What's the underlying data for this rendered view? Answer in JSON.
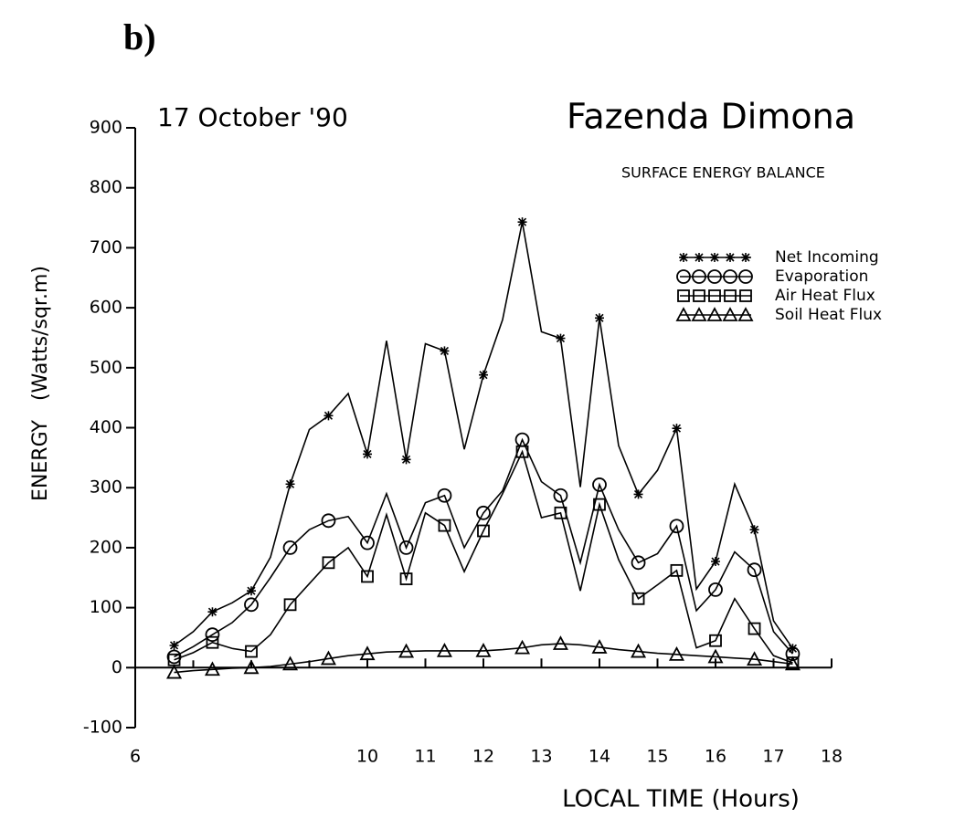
{
  "chart_data": {
    "type": "line",
    "panel_label": "b)",
    "subtitle": "17 October '90",
    "title": "Fazenda Dimona",
    "caption": "SURFACE ENERGY BALANCE",
    "ylabel": "ENERGY   (Watts/sqr.m)",
    "xlabel": "LOCAL TIME (Hours)",
    "x": [
      6.67,
      7,
      7.33,
      7.67,
      8,
      8.33,
      8.67,
      9,
      9.33,
      9.67,
      10,
      10.33,
      10.67,
      11,
      11.33,
      11.67,
      12,
      12.33,
      12.67,
      13,
      13.33,
      13.67,
      14,
      14.33,
      14.67,
      15,
      15.33,
      15.67,
      16,
      16.33,
      16.67,
      17,
      17.33
    ],
    "series": [
      {
        "name": "Net   Incoming",
        "marker": "star",
        "color": "#000000",
        "values": [
          37,
          60,
          93,
          108,
          128,
          184,
          306,
          397,
          420,
          457,
          356,
          545,
          347,
          540,
          528,
          364,
          488,
          580,
          743,
          560,
          549,
          301,
          583,
          370,
          289,
          329,
          399,
          131,
          177,
          306,
          230,
          78,
          32
        ]
      },
      {
        "name": "Evaporation",
        "marker": "circle",
        "color": "#000000",
        "values": [
          18,
          35,
          55,
          75,
          105,
          150,
          200,
          230,
          245,
          252,
          208,
          290,
          200,
          275,
          287,
          200,
          258,
          295,
          380,
          310,
          287,
          175,
          305,
          230,
          175,
          190,
          236,
          95,
          130,
          193,
          163,
          60,
          23
        ]
      },
      {
        "name": "Air   Heat Flux",
        "marker": "square",
        "color": "#000000",
        "values": [
          13,
          25,
          42,
          32,
          27,
          55,
          105,
          140,
          175,
          200,
          152,
          255,
          148,
          258,
          237,
          160,
          228,
          290,
          360,
          250,
          258,
          128,
          272,
          180,
          115,
          138,
          162,
          33,
          45,
          115,
          65,
          20,
          8
        ]
      },
      {
        "name": "Soil  Heat Flux",
        "marker": "triangle",
        "color": "#000000",
        "values": [
          -8,
          -5,
          -3,
          -1,
          0,
          2,
          6,
          10,
          15,
          20,
          23,
          26,
          27,
          28,
          28,
          28,
          28,
          30,
          33,
          38,
          40,
          38,
          34,
          30,
          27,
          24,
          22,
          20,
          18,
          16,
          14,
          10,
          6
        ]
      }
    ],
    "marker_every": 2,
    "xlim": [
      6,
      18
    ],
    "xticks": [
      6,
      10,
      11,
      12,
      13,
      14,
      15,
      16,
      17,
      18
    ],
    "xticks_minor": [
      7,
      8,
      9
    ],
    "ylim": [
      -100,
      900
    ],
    "yticks": [
      -100,
      0,
      100,
      200,
      300,
      400,
      500,
      600,
      700,
      800,
      900
    ],
    "grid": false
  }
}
